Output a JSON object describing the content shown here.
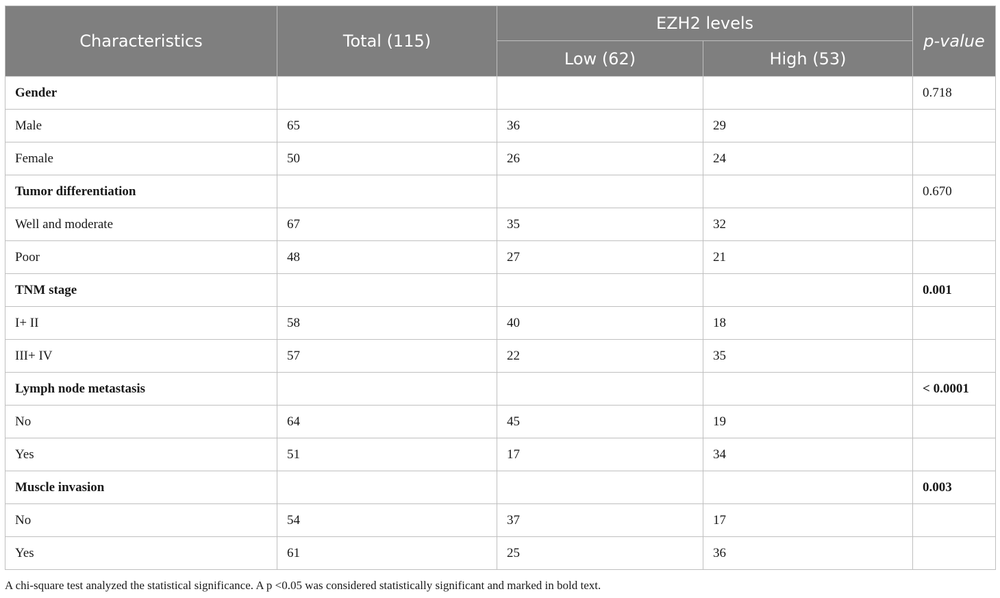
{
  "table": {
    "headers": {
      "characteristics": "Characteristics",
      "total": "Total (115)",
      "ezh2_levels": "EZH2 levels",
      "low": "Low (62)",
      "high": "High (53)",
      "p_value": "p-value"
    },
    "rows": [
      {
        "label": "Gender",
        "group": true,
        "total": "",
        "low": "",
        "high": "",
        "p": "0.718",
        "p_bold": false
      },
      {
        "label": "Male",
        "group": false,
        "total": "65",
        "low": "36",
        "high": "29",
        "p": ""
      },
      {
        "label": "Female",
        "group": false,
        "total": "50",
        "low": "26",
        "high": "24",
        "p": ""
      },
      {
        "label": "Tumor differentiation",
        "group": true,
        "total": "",
        "low": "",
        "high": "",
        "p": "0.670",
        "p_bold": false
      },
      {
        "label": "Well and moderate",
        "group": false,
        "total": "67",
        "low": "35",
        "high": "32",
        "p": ""
      },
      {
        "label": "Poor",
        "group": false,
        "total": "48",
        "low": "27",
        "high": "21",
        "p": ""
      },
      {
        "label": "TNM stage",
        "group": true,
        "total": "",
        "low": "",
        "high": "",
        "p": "0.001",
        "p_bold": true
      },
      {
        "label": "I+ II",
        "group": false,
        "total": "58",
        "low": "40",
        "high": "18",
        "p": ""
      },
      {
        "label": "III+ IV",
        "group": false,
        "total": "57",
        "low": "22",
        "high": "35",
        "p": ""
      },
      {
        "label": "Lymph node metastasis",
        "group": true,
        "total": "",
        "low": "",
        "high": "",
        "p": "< 0.0001",
        "p_bold": true
      },
      {
        "label": "No",
        "group": false,
        "total": "64",
        "low": "45",
        "high": "19",
        "p": ""
      },
      {
        "label": "Yes",
        "group": false,
        "total": "51",
        "low": "17",
        "high": "34",
        "p": ""
      },
      {
        "label": "Muscle invasion",
        "group": true,
        "total": "",
        "low": "",
        "high": "",
        "p": "0.003",
        "p_bold": true
      },
      {
        "label": "No",
        "group": false,
        "total": "54",
        "low": "37",
        "high": "17",
        "p": ""
      },
      {
        "label": "Yes",
        "group": false,
        "total": "61",
        "low": "25",
        "high": "36",
        "p": ""
      }
    ]
  },
  "footnote": "A chi-square test analyzed the statistical significance. A p <0.05 was considered statistically significant and marked in bold text.",
  "colors": {
    "header_bg": "#7f7f7f",
    "header_text": "#ffffff",
    "border": "#bfbfbf"
  }
}
